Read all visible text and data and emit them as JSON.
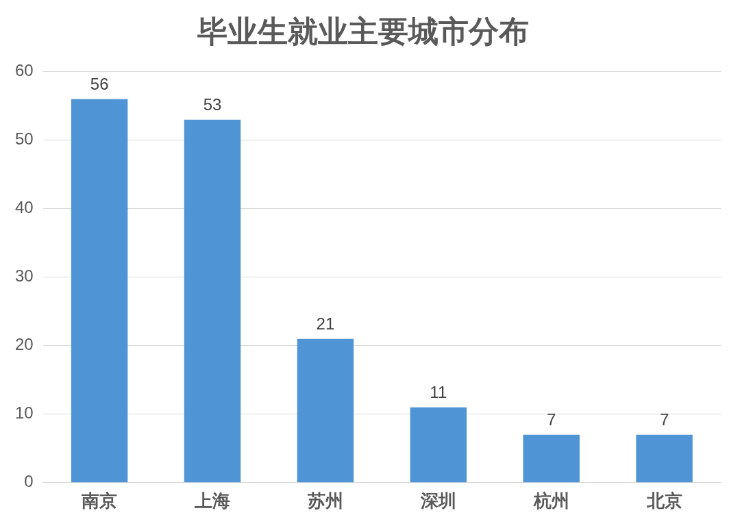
{
  "chart_data": {
    "type": "bar",
    "title": "毕业生就业主要城市分布",
    "categories": [
      "南京",
      "上海",
      "苏州",
      "深圳",
      "杭州",
      "北京"
    ],
    "values": [
      56,
      53,
      21,
      11,
      7,
      7
    ],
    "color": "#4f95d6",
    "ylim": [
      0,
      60
    ],
    "yticks": [
      0,
      10,
      20,
      30,
      40,
      50,
      60
    ],
    "grid": "y",
    "legend": false,
    "data_labels": true
  }
}
